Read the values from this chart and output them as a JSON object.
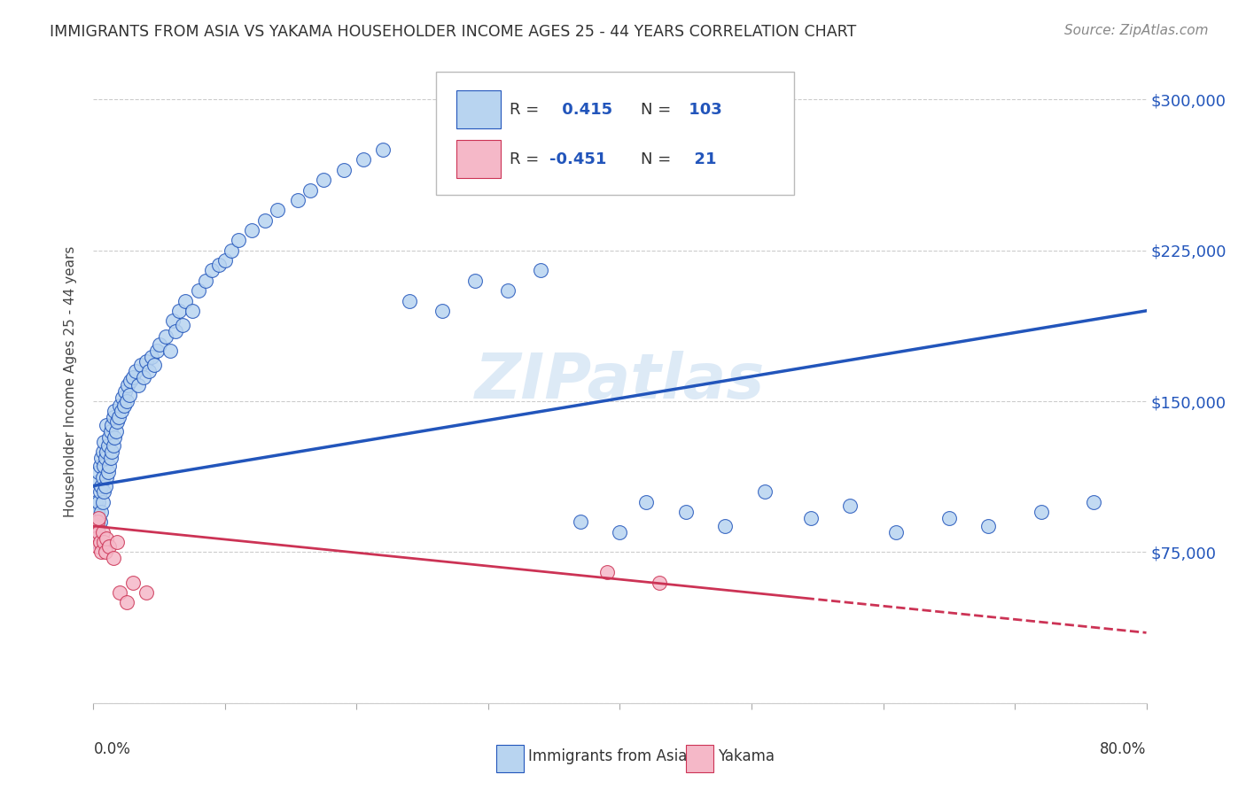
{
  "title": "IMMIGRANTS FROM ASIA VS YAKAMA HOUSEHOLDER INCOME AGES 25 - 44 YEARS CORRELATION CHART",
  "source": "Source: ZipAtlas.com",
  "ylabel": "Householder Income Ages 25 - 44 years",
  "watermark": "ZIPatlas",
  "blue_R": 0.415,
  "blue_N": 103,
  "pink_R": -0.451,
  "pink_N": 21,
  "blue_color": "#b8d4f0",
  "blue_line_color": "#2255bb",
  "pink_color": "#f5b8c8",
  "pink_line_color": "#cc3355",
  "background": "#ffffff",
  "yticks": [
    0,
    75000,
    150000,
    225000,
    300000
  ],
  "ytick_labels": [
    "",
    "$75,000",
    "$150,000",
    "$225,000",
    "$300,000"
  ],
  "xmin": 0.0,
  "xmax": 0.8,
  "ymin": 0,
  "ymax": 320000,
  "blue_scatter_x": [
    0.001,
    0.002,
    0.002,
    0.003,
    0.003,
    0.003,
    0.004,
    0.004,
    0.004,
    0.005,
    0.005,
    0.005,
    0.006,
    0.006,
    0.006,
    0.007,
    0.007,
    0.007,
    0.008,
    0.008,
    0.008,
    0.009,
    0.009,
    0.01,
    0.01,
    0.01,
    0.011,
    0.011,
    0.012,
    0.012,
    0.013,
    0.013,
    0.014,
    0.014,
    0.015,
    0.015,
    0.016,
    0.016,
    0.017,
    0.018,
    0.019,
    0.02,
    0.021,
    0.022,
    0.023,
    0.024,
    0.025,
    0.026,
    0.027,
    0.028,
    0.03,
    0.032,
    0.034,
    0.036,
    0.038,
    0.04,
    0.042,
    0.044,
    0.046,
    0.048,
    0.05,
    0.055,
    0.058,
    0.06,
    0.062,
    0.065,
    0.068,
    0.07,
    0.075,
    0.08,
    0.085,
    0.09,
    0.095,
    0.1,
    0.105,
    0.11,
    0.12,
    0.13,
    0.14,
    0.155,
    0.165,
    0.175,
    0.19,
    0.205,
    0.22,
    0.24,
    0.265,
    0.29,
    0.315,
    0.34,
    0.37,
    0.4,
    0.42,
    0.45,
    0.48,
    0.51,
    0.545,
    0.575,
    0.61,
    0.65,
    0.68,
    0.72,
    0.76
  ],
  "blue_scatter_y": [
    85000,
    92000,
    100000,
    80000,
    95000,
    110000,
    88000,
    100000,
    115000,
    90000,
    105000,
    118000,
    95000,
    108000,
    122000,
    100000,
    112000,
    125000,
    105000,
    118000,
    130000,
    108000,
    122000,
    112000,
    125000,
    138000,
    115000,
    128000,
    118000,
    132000,
    122000,
    135000,
    125000,
    138000,
    128000,
    142000,
    132000,
    145000,
    135000,
    140000,
    142000,
    148000,
    145000,
    152000,
    148000,
    155000,
    150000,
    158000,
    153000,
    160000,
    162000,
    165000,
    158000,
    168000,
    162000,
    170000,
    165000,
    172000,
    168000,
    175000,
    178000,
    182000,
    175000,
    190000,
    185000,
    195000,
    188000,
    200000,
    195000,
    205000,
    210000,
    215000,
    218000,
    220000,
    225000,
    230000,
    235000,
    240000,
    245000,
    250000,
    255000,
    260000,
    265000,
    270000,
    275000,
    200000,
    195000,
    210000,
    205000,
    215000,
    90000,
    85000,
    100000,
    95000,
    88000,
    105000,
    92000,
    98000,
    85000,
    92000,
    88000,
    95000,
    100000
  ],
  "pink_scatter_x": [
    0.001,
    0.002,
    0.003,
    0.003,
    0.004,
    0.004,
    0.005,
    0.006,
    0.007,
    0.008,
    0.009,
    0.01,
    0.012,
    0.015,
    0.018,
    0.02,
    0.025,
    0.03,
    0.04,
    0.39,
    0.43
  ],
  "pink_scatter_y": [
    88000,
    82000,
    90000,
    78000,
    85000,
    92000,
    80000,
    75000,
    85000,
    80000,
    75000,
    82000,
    78000,
    72000,
    80000,
    55000,
    50000,
    60000,
    55000,
    65000,
    60000
  ],
  "blue_trend_x0": 0.0,
  "blue_trend_y0": 108000,
  "blue_trend_x1": 0.8,
  "blue_trend_y1": 195000,
  "pink_trend_x0": 0.0,
  "pink_trend_y0": 88000,
  "pink_trend_x1": 0.8,
  "pink_trend_y1": 35000
}
